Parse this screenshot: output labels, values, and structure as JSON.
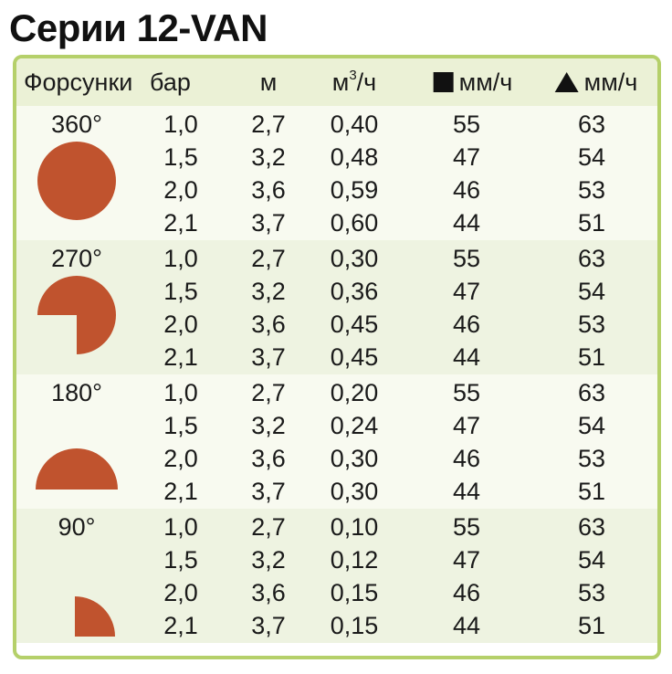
{
  "title": "Серии 12-VAN",
  "colors": {
    "frame_border": "#b5d06a",
    "header_bg": "#ebf1d6",
    "row_shade": "#eef3e1",
    "row_plain": "#f8faf0",
    "nozzle_fill": "#c0532e"
  },
  "header": {
    "nozzles": "Форсунки",
    "pressure": "бар",
    "radius": "м",
    "flow_base": "м",
    "flow_sup": "3",
    "flow_rest": "/ч",
    "square_rate_icon": "square-icon",
    "square_rate": "мм/ч",
    "triangle_rate_icon": "triangle-icon",
    "triangle_rate": "мм/ч"
  },
  "groups": [
    {
      "angle": "360°",
      "shape": "full-circle",
      "rows": [
        {
          "bar": "1,0",
          "m": "2,7",
          "flow": "0,40",
          "sq": "55",
          "tri": "63"
        },
        {
          "bar": "1,5",
          "m": "3,2",
          "flow": "0,48",
          "sq": "47",
          "tri": "54"
        },
        {
          "bar": "2,0",
          "m": "3,6",
          "flow": "0,59",
          "sq": "46",
          "tri": "53"
        },
        {
          "bar": "2,1",
          "m": "3,7",
          "flow": "0,60",
          "sq": "44",
          "tri": "51"
        }
      ]
    },
    {
      "angle": "270°",
      "shape": "three-quarter-circle",
      "rows": [
        {
          "bar": "1,0",
          "m": "2,7",
          "flow": "0,30",
          "sq": "55",
          "tri": "63"
        },
        {
          "bar": "1,5",
          "m": "3,2",
          "flow": "0,36",
          "sq": "47",
          "tri": "54"
        },
        {
          "bar": "2,0",
          "m": "3,6",
          "flow": "0,45",
          "sq": "46",
          "tri": "53"
        },
        {
          "bar": "2,1",
          "m": "3,7",
          "flow": "0,45",
          "sq": "44",
          "tri": "51"
        }
      ]
    },
    {
      "angle": "180°",
      "shape": "half-circle",
      "rows": [
        {
          "bar": "1,0",
          "m": "2,7",
          "flow": "0,20",
          "sq": "55",
          "tri": "63"
        },
        {
          "bar": "1,5",
          "m": "3,2",
          "flow": "0,24",
          "sq": "47",
          "tri": "54"
        },
        {
          "bar": "2,0",
          "m": "3,6",
          "flow": "0,30",
          "sq": "46",
          "tri": "53"
        },
        {
          "bar": "2,1",
          "m": "3,7",
          "flow": "0,30",
          "sq": "44",
          "tri": "51"
        }
      ]
    },
    {
      "angle": "90°",
      "shape": "quarter-circle",
      "rows": [
        {
          "bar": "1,0",
          "m": "2,7",
          "flow": "0,10",
          "sq": "55",
          "tri": "63"
        },
        {
          "bar": "1,5",
          "m": "3,2",
          "flow": "0,12",
          "sq": "47",
          "tri": "54"
        },
        {
          "bar": "2,0",
          "m": "3,6",
          "flow": "0,15",
          "sq": "46",
          "tri": "53"
        },
        {
          "bar": "2,1",
          "m": "3,7",
          "flow": "0,15",
          "sq": "44",
          "tri": "51"
        }
      ]
    }
  ]
}
